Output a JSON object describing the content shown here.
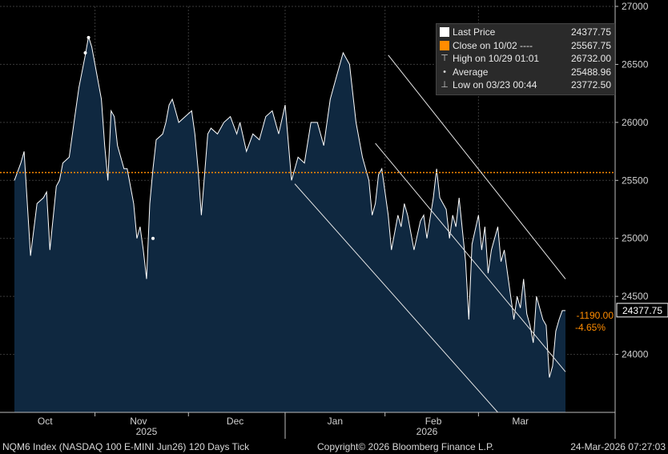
{
  "chart_data": {
    "type": "area",
    "instrument": "NQM6 Index (NASDAQ 100 E-MINI Jun26) 120 Days Tick",
    "ylim": [
      23500,
      27000
    ],
    "yticks": [
      24000,
      24500,
      25000,
      25500,
      26000,
      26500,
      27000
    ],
    "ytick_labels": [
      "24000",
      "24500",
      "25000",
      "25500",
      "26000",
      "26500",
      "27000"
    ],
    "xlim": [
      0,
      171
    ],
    "x_month_labels": [
      {
        "label": "Oct",
        "x": 9.5
      },
      {
        "label": "Nov",
        "x": 38.5
      },
      {
        "label": "Dec",
        "x": 68.5
      },
      {
        "label": "Jan",
        "x": 99.5
      },
      {
        "label": "Feb",
        "x": 130.0
      },
      {
        "label": "Mar",
        "x": 157.0
      }
    ],
    "x_month_boundaries": [
      25,
      54,
      84,
      115,
      144
    ],
    "x_year_labels": [
      {
        "label": "2025",
        "x": 41
      },
      {
        "label": "2026",
        "x": 128
      }
    ],
    "series": [
      {
        "name": "Last Price",
        "x": [
          0,
          2,
          3,
          5,
          7,
          9,
          10,
          11,
          13,
          14,
          15,
          17,
          19,
          20,
          22,
          23,
          24,
          25,
          26,
          27,
          28,
          29,
          30,
          31,
          32,
          34,
          35,
          37,
          38,
          39,
          40,
          41,
          42,
          43,
          44,
          46,
          47,
          48,
          49,
          50,
          51,
          53,
          55,
          56,
          57,
          58,
          59,
          60,
          61,
          63,
          65,
          67,
          69,
          70,
          72,
          74,
          76,
          78,
          80,
          82,
          84,
          86,
          88,
          90,
          92,
          94,
          96,
          98,
          100,
          102,
          104,
          106,
          108,
          110,
          111,
          112,
          113,
          114,
          115,
          116,
          117,
          119,
          120,
          121,
          122,
          124,
          126,
          127,
          128,
          130,
          131,
          132,
          134,
          135,
          136,
          137,
          138,
          140,
          141,
          142,
          144,
          145,
          146,
          147,
          148,
          150,
          151,
          152,
          153,
          154,
          155,
          156,
          157,
          158,
          159,
          160,
          161,
          162,
          163,
          164,
          165,
          166,
          167,
          168,
          169,
          170,
          171
        ],
        "values": [
          25500,
          25650,
          25750,
          24850,
          25300,
          25350,
          25400,
          24900,
          25450,
          25500,
          25650,
          25700,
          26100,
          26300,
          26580,
          26740,
          26650,
          26500,
          26350,
          26200,
          25800,
          25500,
          26100,
          26050,
          25800,
          25600,
          25600,
          25300,
          25000,
          25100,
          24900,
          24650,
          25300,
          25600,
          25850,
          25900,
          26000,
          26150,
          26200,
          26100,
          26000,
          26050,
          26100,
          25900,
          25600,
          25200,
          25550,
          25900,
          25950,
          25900,
          26000,
          26050,
          25900,
          26000,
          25750,
          25900,
          25850,
          26050,
          26100,
          25900,
          26150,
          25500,
          25700,
          25650,
          26000,
          26000,
          25800,
          26200,
          26400,
          26600,
          26500,
          26000,
          25700,
          25500,
          25200,
          25300,
          25550,
          25600,
          25400,
          25200,
          24900,
          25200,
          25100,
          25300,
          25200,
          24900,
          25150,
          25200,
          25000,
          25350,
          25600,
          25350,
          25250,
          25000,
          25200,
          25100,
          25350,
          24800,
          24300,
          24950,
          25200,
          24900,
          25100,
          24700,
          24900,
          25100,
          24800,
          24900,
          24700,
          24500,
          24300,
          24500,
          24400,
          24650,
          24350,
          24250,
          24100,
          24500,
          24400,
          24300,
          24250,
          23800,
          23900,
          24200,
          24300,
          24377.75,
          24377.75
        ]
      }
    ],
    "marker_points": [
      {
        "x": 23,
        "y": 26732
      },
      {
        "x": 22,
        "y": 26600
      },
      {
        "x": 43,
        "y": 25000
      }
    ],
    "close_line": {
      "label": "Close on 10/02",
      "value": 25567.75,
      "color": "#ff8c00"
    },
    "channel_lines": [
      {
        "x1": 116,
        "y1": 26580,
        "x2": 171,
        "y2": 24650
      },
      {
        "x1": 112,
        "y1": 25820,
        "x2": 171,
        "y2": 23850
      },
      {
        "x1": 87,
        "y1": 25470,
        "x2": 150,
        "y2": 23500
      }
    ],
    "last_price_tag": "24377.75",
    "change_points": "-1190.00",
    "change_percent": "-4.65%",
    "legend": [
      {
        "icon": "square",
        "color": "#ffffff",
        "label": "Last Price",
        "value": "24377.75"
      },
      {
        "icon": "square",
        "color": "#ff8c00",
        "label": "Close on 10/02  ----",
        "value": "25567.75"
      },
      {
        "icon": "high-marker",
        "color": "#cfcfcf",
        "label": "High on 10/29 01:01",
        "value": "26732.00"
      },
      {
        "icon": "average-marker",
        "color": "#cfcfcf",
        "label": "Average",
        "value": "25488.96"
      },
      {
        "icon": "low-marker",
        "color": "#cfcfcf",
        "label": "Low on 03/23 00:44",
        "value": "23772.50"
      }
    ],
    "colors": {
      "background": "#000000",
      "area_fill": "#0f2840",
      "price_line": "#ffffff",
      "close_line": "#ff8c00",
      "grid": "#3a3a3a",
      "axis_text": "#d0d0d0",
      "change_text": "#ff8c00"
    }
  },
  "footer": {
    "left": "NQM6 Index (NASDAQ 100 E-MINI Jun26) 120 Days Tick",
    "center": "Copyright© 2026 Bloomberg Finance L.P.",
    "right": "24-Mar-2026 07:27:03"
  }
}
